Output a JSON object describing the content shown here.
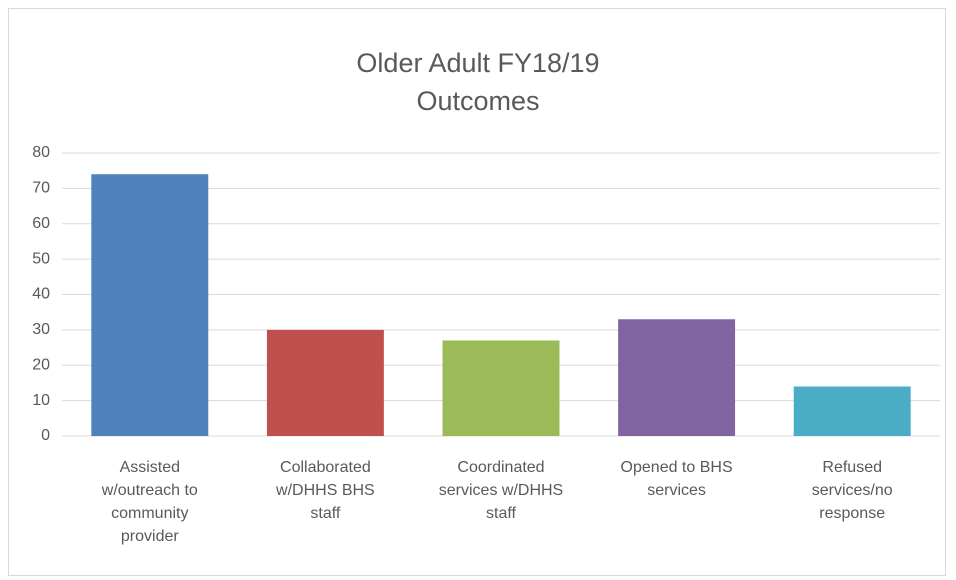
{
  "chart_data": {
    "type": "bar",
    "title": "Older Adult FY18/19 Outcomes",
    "categories": [
      "Assisted w/outreach to community provider",
      "Collaborated w/DHHS BHS staff",
      "Coordinated services w/DHHS staff",
      "Opened to BHS services",
      "Refused services/no response"
    ],
    "values": [
      74,
      30,
      27,
      33,
      14
    ],
    "colors": [
      "#4f81bd",
      "#c0504d",
      "#9bbb59",
      "#8064a2",
      "#4bacc6"
    ],
    "ylim": [
      0,
      80
    ],
    "yticks": [
      0,
      10,
      20,
      30,
      40,
      50,
      60,
      70,
      80
    ],
    "grid": true
  }
}
